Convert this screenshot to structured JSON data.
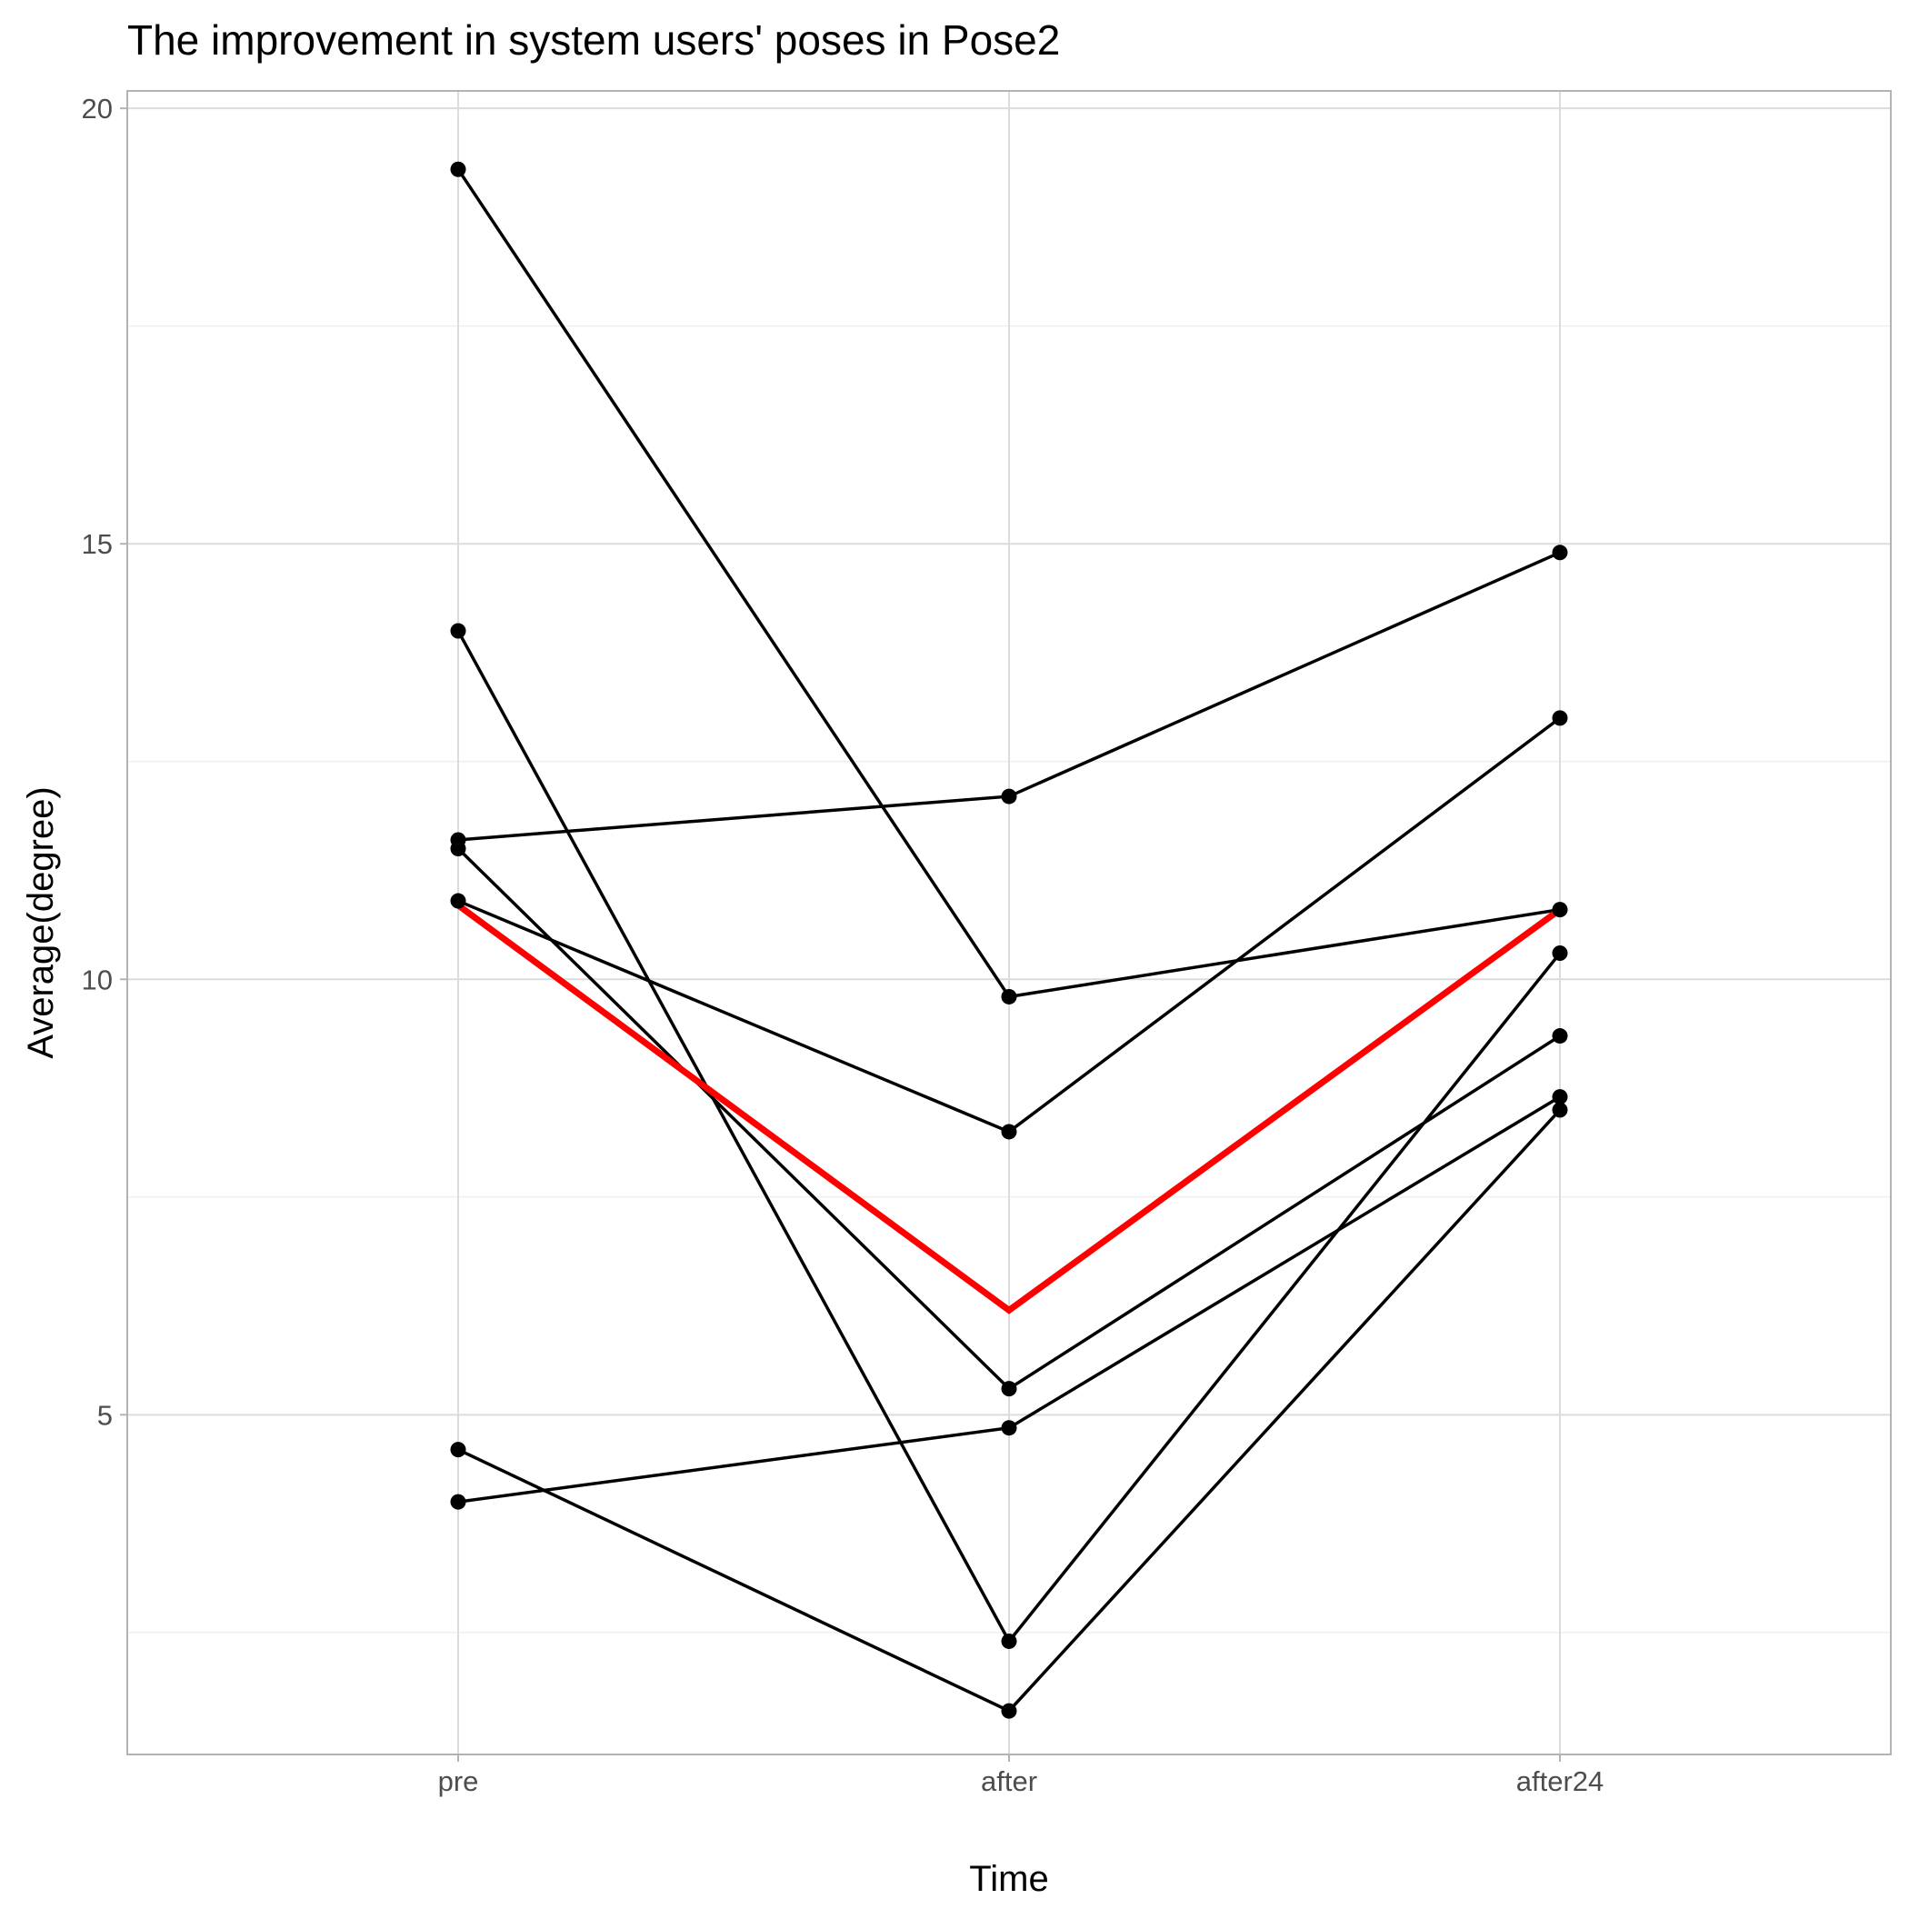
{
  "chart_data": {
    "type": "line",
    "title": "The improvement in system users' poses in Pose2",
    "xlabel": "Time",
    "ylabel": "Average(degree)",
    "categories": [
      "pre",
      "after",
      "after24"
    ],
    "ylim": [
      1.1,
      20.2
    ],
    "yticks": [
      5,
      10,
      15,
      20
    ],
    "grid": true,
    "legend": "none",
    "series": [
      {
        "values": [
          19.3,
          9.8,
          10.8
        ],
        "color": "#000000"
      },
      {
        "values": [
          14.0,
          2.4,
          10.3
        ],
        "color": "#000000"
      },
      {
        "values": [
          11.6,
          12.1,
          14.9
        ],
        "color": "#000000"
      },
      {
        "values": [
          11.5,
          5.3,
          9.35
        ],
        "color": "#000000"
      },
      {
        "values": [
          10.9,
          8.25,
          13.0
        ],
        "color": "#000000"
      },
      {
        "values": [
          4.6,
          1.6,
          8.5
        ],
        "color": "#000000"
      },
      {
        "values": [
          4.0,
          4.85,
          8.65
        ],
        "color": "#000000"
      },
      {
        "values": [
          10.85,
          6.2,
          10.8
        ],
        "color": "#ff0000",
        "emphasis": true,
        "show_points": false
      }
    ]
  }
}
